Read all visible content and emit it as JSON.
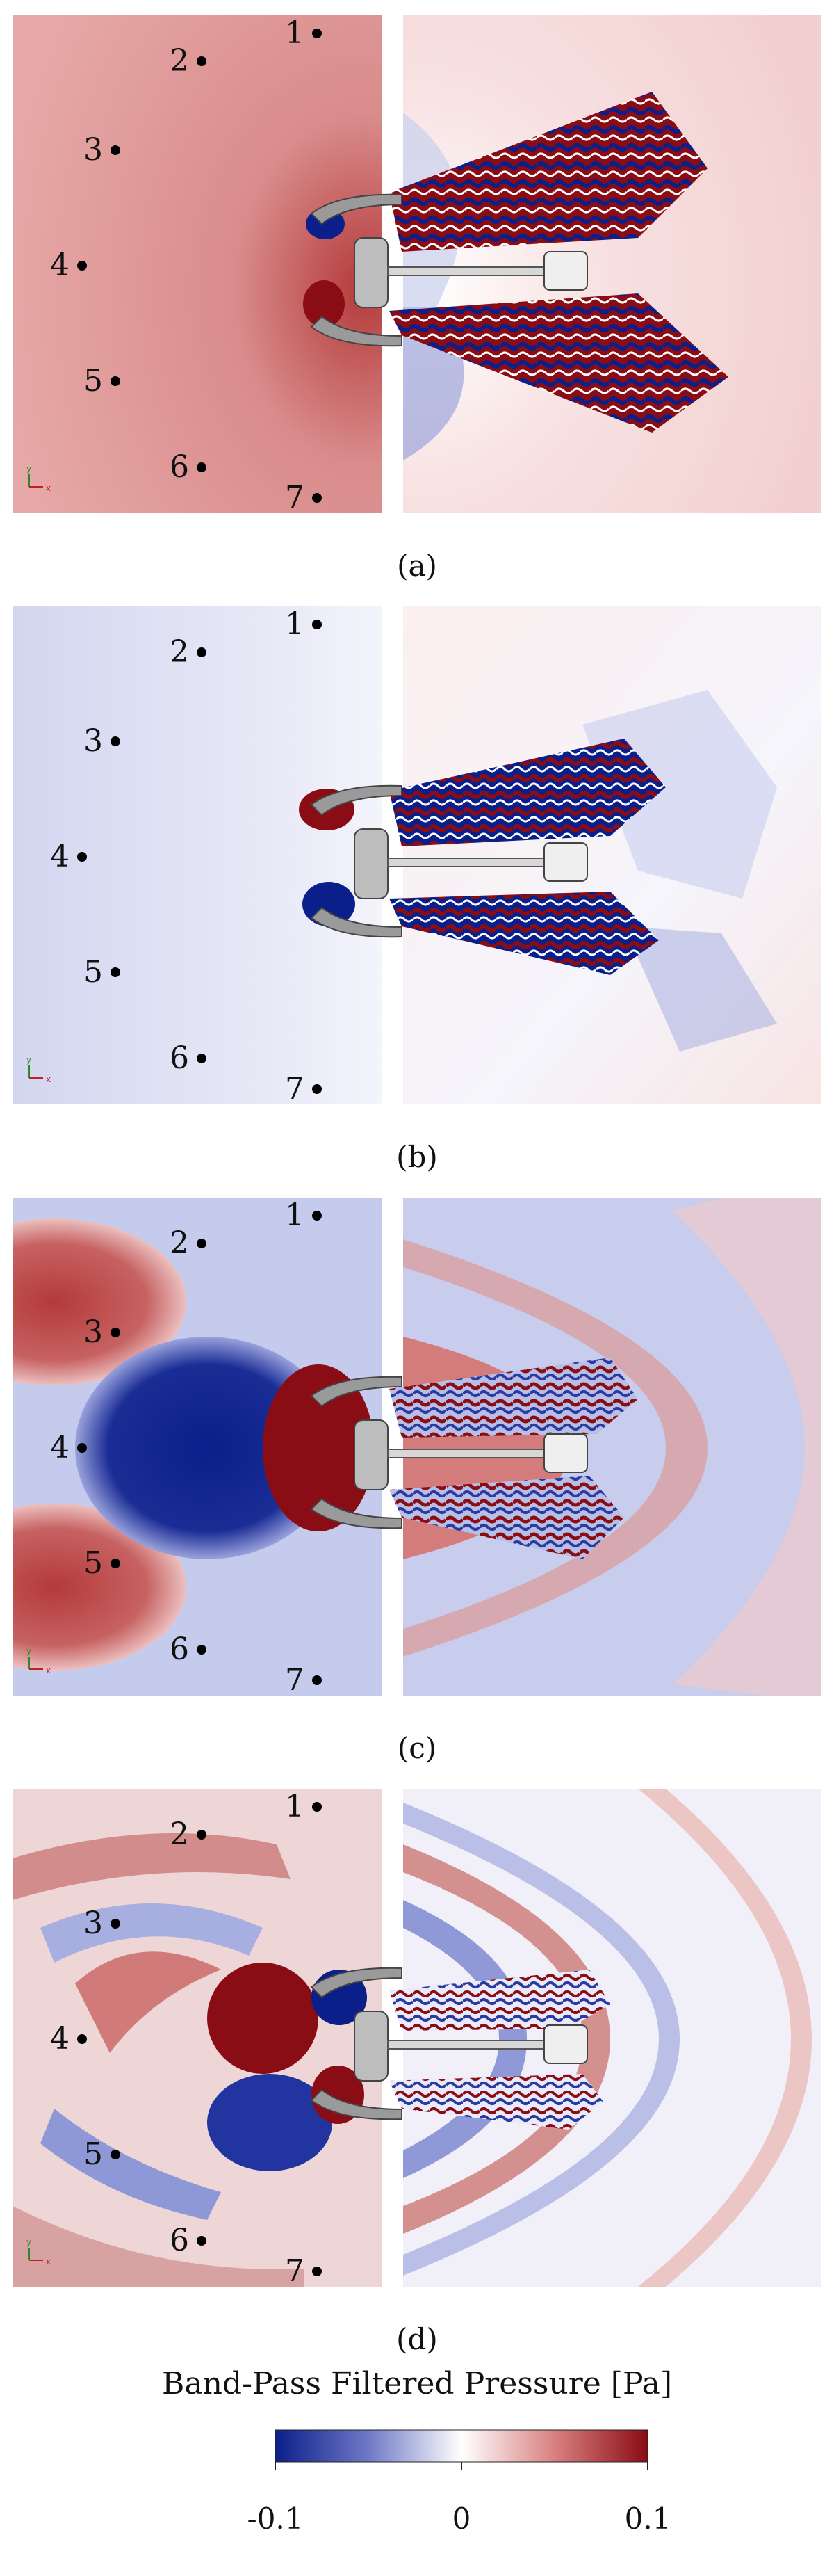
{
  "figure": {
    "panels": [
      {
        "caption": "(a)",
        "scheme": "a"
      },
      {
        "caption": "(b)",
        "scheme": "b"
      },
      {
        "caption": "(c)",
        "scheme": "c"
      },
      {
        "caption": "(d)",
        "scheme": "d"
      }
    ],
    "probes": [
      {
        "label": "1"
      },
      {
        "label": "2"
      },
      {
        "label": "3"
      },
      {
        "label": "4"
      },
      {
        "label": "5"
      },
      {
        "label": "6"
      },
      {
        "label": "7"
      }
    ],
    "axis_triad": {
      "x": "x",
      "y": "y"
    },
    "colorbar": {
      "title": "Band-Pass Filtered Pressure [Pa]",
      "min": -0.1,
      "mid": 0,
      "max": 0.1,
      "tick_labels": [
        "-0.1",
        "0",
        "0.1"
      ],
      "colors": [
        "#0b1f8a",
        "#6f78c6",
        "#ffffff",
        "#d98080",
        "#8a0c14"
      ]
    }
  }
}
